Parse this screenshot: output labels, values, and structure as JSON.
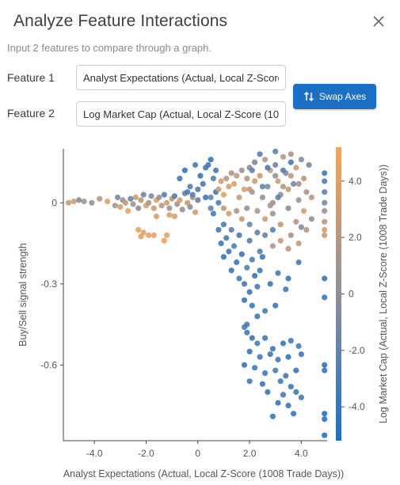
{
  "dialog": {
    "title": "Analyze Feature Interactions",
    "subtitle": "Input 2 features to compare through a graph.",
    "feature1_label": "Feature 1",
    "feature1_value": "Analyst Expectations (Actual, Local Z-Score (1008 Trade Days))",
    "feature2_label": "Feature 2",
    "feature2_value": "Log Market Cap (Actual, Local Z-Score (1008 Trade Days))",
    "swap_label": "Swap Axes",
    "icons": {
      "close": "close-icon",
      "swap": "swap-vertical-icon"
    }
  },
  "chart_data": {
    "type": "scatter",
    "title": "",
    "xlabel": "Analyst Expectations (Actual, Local Z-Score (1008 Trade Days))",
    "ylabel": "Buy/Sell signal strength",
    "colorbar_label": "Log Market Cap (Actual, Local Z-Score (1008 Trade Days))",
    "xlim": [
      -5.2,
      5.0
    ],
    "ylim": [
      -0.88,
      0.2
    ],
    "x_ticks": [
      -4.0,
      -2.0,
      0,
      2.0,
      4.0
    ],
    "x_tick_labels": [
      "-4.0",
      "-2.0",
      "0",
      "2.0",
      "4.0"
    ],
    "y_ticks": [
      0,
      -0.3,
      -0.6
    ],
    "y_tick_labels": [
      "0",
      "-0.3",
      "-0.6"
    ],
    "color_range": [
      -5.2,
      5.2
    ],
    "colorbar_ticks": [
      4.0,
      2.0,
      0,
      -2.0,
      -4.0
    ],
    "colorbar_tick_labels": [
      "4.0",
      "2.0",
      "0",
      "-2.0",
      "-4.0"
    ],
    "colors": {
      "low": "#1f6fc0",
      "mid": "#8f8f9a",
      "high": "#f3a65a"
    },
    "grid": false,
    "point_color_by": "Log Market Cap",
    "points": [
      [
        -5.0,
        0.0,
        2.6
      ],
      [
        -4.8,
        0.005,
        3.2
      ],
      [
        -4.6,
        0.01,
        -0.5
      ],
      [
        -4.4,
        0.005,
        1.2
      ],
      [
        -4.1,
        0.0,
        0.4
      ],
      [
        -3.8,
        0.015,
        2.0
      ],
      [
        -3.5,
        0.005,
        4.2
      ],
      [
        -3.2,
        -0.01,
        1.5
      ],
      [
        -3.1,
        0.02,
        -1.0
      ],
      [
        -3.0,
        -0.015,
        3.5
      ],
      [
        -2.9,
        0.01,
        0.5
      ],
      [
        -2.8,
        0.0,
        2.5
      ],
      [
        -2.7,
        -0.03,
        4.3
      ],
      [
        -2.6,
        0.015,
        -2.0
      ],
      [
        -2.5,
        -0.005,
        1.0
      ],
      [
        -2.4,
        0.02,
        3.0
      ],
      [
        -2.3,
        -0.02,
        0.0
      ],
      [
        -2.2,
        0.01,
        2.2
      ],
      [
        -2.1,
        0.03,
        -1.5
      ],
      [
        -2.0,
        -0.01,
        3.8
      ],
      [
        -1.9,
        0.0,
        1.4
      ],
      [
        -1.8,
        0.025,
        -0.6
      ],
      [
        -1.7,
        -0.02,
        2.8
      ],
      [
        -1.6,
        0.01,
        4.0
      ],
      [
        -1.5,
        0.02,
        0.2
      ],
      [
        -1.4,
        -0.01,
        1.8
      ],
      [
        -1.3,
        0.03,
        -2.5
      ],
      [
        -1.2,
        0.0,
        3.2
      ],
      [
        -1.1,
        -0.02,
        0.8
      ],
      [
        -1.0,
        0.015,
        2.4
      ],
      [
        -0.9,
        0.025,
        -3.0
      ],
      [
        -0.8,
        -0.005,
        1.1
      ],
      [
        -0.7,
        0.01,
        3.6
      ],
      [
        -0.6,
        -0.025,
        0.3
      ],
      [
        -0.5,
        0.035,
        -1.8
      ],
      [
        -0.4,
        0.0,
        2.9
      ],
      [
        -0.3,
        -0.015,
        -0.4
      ],
      [
        -0.2,
        0.02,
        1.6
      ],
      [
        -0.1,
        -0.035,
        3.4
      ],
      [
        0.0,
        0.01,
        -2.2
      ],
      [
        -2.3,
        -0.1,
        4.5
      ],
      [
        -2.1,
        -0.11,
        4.4
      ],
      [
        -1.9,
        -0.12,
        4.6
      ],
      [
        -1.7,
        -0.12,
        4.5
      ],
      [
        -1.3,
        -0.14,
        4.4
      ],
      [
        -1.2,
        -0.12,
        4.6
      ],
      [
        -2.2,
        -0.125,
        4.3
      ],
      [
        -1.1,
        -0.045,
        4.2
      ],
      [
        -0.9,
        -0.05,
        3.9
      ],
      [
        -1.6,
        -0.05,
        4.1
      ],
      [
        -0.7,
        0.09,
        -3.5
      ],
      [
        -0.5,
        0.12,
        -4.0
      ],
      [
        -0.3,
        0.06,
        -2.8
      ],
      [
        -0.1,
        0.14,
        -3.2
      ],
      [
        0.1,
        0.1,
        -4.2
      ],
      [
        0.3,
        0.13,
        -3.0
      ],
      [
        0.4,
        0.14,
        -3.6
      ],
      [
        0.5,
        0.16,
        -4.0
      ],
      [
        0.6,
        0.09,
        -2.5
      ],
      [
        0.2,
        0.07,
        -3.3
      ],
      [
        -0.2,
        0.03,
        -2.4
      ],
      [
        0.0,
        0.05,
        -3.1
      ],
      [
        0.5,
        0.02,
        -1.6
      ],
      [
        0.7,
        0.12,
        -3.4
      ],
      [
        0.3,
        0.02,
        -3.6
      ],
      [
        -0.4,
        0.04,
        -2.9
      ],
      [
        0.5,
        -0.02,
        -2.0
      ],
      [
        0.7,
        0.04,
        -3.5
      ],
      [
        0.8,
        0.0,
        -2.7
      ],
      [
        0.6,
        -0.04,
        -3.3
      ],
      [
        0.8,
        0.05,
        2.8
      ],
      [
        0.9,
        0.08,
        3.4
      ],
      [
        1.0,
        0.03,
        4.0
      ],
      [
        1.1,
        0.09,
        2.2
      ],
      [
        1.2,
        0.06,
        3.6
      ],
      [
        1.3,
        0.11,
        1.5
      ],
      [
        1.4,
        0.07,
        4.2
      ],
      [
        1.5,
        0.1,
        2.6
      ],
      [
        1.6,
        0.02,
        3.0
      ],
      [
        1.7,
        0.12,
        0.8
      ],
      [
        1.8,
        0.05,
        3.8
      ],
      [
        1.9,
        0.09,
        2.0
      ],
      [
        2.0,
        0.13,
        -0.5
      ],
      [
        2.1,
        0.04,
        1.2
      ],
      [
        2.2,
        0.08,
        3.3
      ],
      [
        1.0,
        -0.02,
        2.4
      ],
      [
        1.2,
        -0.04,
        3.7
      ],
      [
        1.5,
        -0.03,
        1.8
      ],
      [
        1.7,
        -0.06,
        2.9
      ],
      [
        1.9,
        -0.02,
        0.6
      ],
      [
        0.8,
        -0.1,
        -3.5
      ],
      [
        0.9,
        -0.15,
        -3.8
      ],
      [
        1.0,
        -0.2,
        -4.0
      ],
      [
        1.1,
        -0.13,
        -3.0
      ],
      [
        1.2,
        -0.18,
        -3.6
      ],
      [
        1.3,
        -0.25,
        -4.2
      ],
      [
        1.4,
        -0.16,
        -2.8
      ],
      [
        1.5,
        -0.22,
        -3.9
      ],
      [
        1.6,
        -0.28,
        -3.3
      ],
      [
        1.7,
        -0.19,
        -4.1
      ],
      [
        1.8,
        -0.3,
        -3.5
      ],
      [
        1.9,
        -0.24,
        -2.6
      ],
      [
        2.0,
        -0.33,
        -3.8
      ],
      [
        2.1,
        -0.21,
        -3.0
      ],
      [
        2.2,
        -0.27,
        -4.0
      ],
      [
        2.3,
        -0.31,
        -3.2
      ],
      [
        2.4,
        -0.18,
        -2.9
      ],
      [
        1.0,
        -0.08,
        -3.1
      ],
      [
        1.3,
        -0.1,
        -2.5
      ],
      [
        1.6,
        -0.12,
        -3.4
      ],
      [
        2.0,
        -0.14,
        -2.7
      ],
      [
        2.5,
        -0.2,
        -3.6
      ],
      [
        1.8,
        -0.36,
        -4.1
      ],
      [
        2.1,
        -0.38,
        -3.7
      ],
      [
        2.0,
        0.05,
        2.5
      ],
      [
        2.2,
        0.15,
        -1.0
      ],
      [
        2.4,
        0.1,
        3.0
      ],
      [
        2.5,
        0.02,
        0.5
      ],
      [
        2.6,
        0.16,
        1.8
      ],
      [
        2.7,
        0.06,
        -0.8
      ],
      [
        2.8,
        0.12,
        2.8
      ],
      [
        2.9,
        0.0,
        1.0
      ],
      [
        3.0,
        0.14,
        -1.5
      ],
      [
        3.1,
        0.08,
        3.2
      ],
      [
        3.2,
        0.03,
        0.0
      ],
      [
        3.3,
        0.17,
        2.2
      ],
      [
        3.4,
        0.11,
        -0.5
      ],
      [
        3.5,
        0.05,
        2.6
      ],
      [
        3.6,
        0.18,
        1.4
      ],
      [
        3.7,
        0.07,
        -1.2
      ],
      [
        3.8,
        0.13,
        3.0
      ],
      [
        3.9,
        0.01,
        0.8
      ],
      [
        4.0,
        0.16,
        -0.3
      ],
      [
        4.1,
        0.09,
        2.4
      ],
      [
        4.2,
        0.04,
        1.6
      ],
      [
        4.3,
        0.14,
        -1.0
      ],
      [
        4.4,
        0.02,
        2.0
      ],
      [
        2.3,
        -0.03,
        1.6
      ],
      [
        2.6,
        -0.06,
        3.1
      ],
      [
        2.9,
        -0.04,
        0.9
      ],
      [
        3.2,
        -0.08,
        2.7
      ],
      [
        3.5,
        -0.02,
        -0.2
      ],
      [
        3.8,
        -0.07,
        1.9
      ],
      [
        4.1,
        -0.03,
        3.4
      ],
      [
        4.4,
        -0.06,
        0.4
      ],
      [
        2.8,
        -0.01,
        1.3
      ],
      [
        3.0,
        0.1,
        0.2
      ],
      [
        3.3,
        0.06,
        1.7
      ],
      [
        3.6,
        0.1,
        2.3
      ],
      [
        3.9,
        0.07,
        1.1
      ],
      [
        2.1,
        0.12,
        -2.0
      ],
      [
        2.4,
        0.18,
        -2.6
      ],
      [
        2.7,
        0.13,
        -3.0
      ],
      [
        3.0,
        0.19,
        -2.2
      ],
      [
        3.3,
        0.12,
        -2.8
      ],
      [
        3.6,
        0.15,
        -3.2
      ],
      [
        2.5,
        0.06,
        -1.8
      ],
      [
        3.1,
        0.02,
        -2.4
      ],
      [
        2.0,
        -0.08,
        -1.5
      ],
      [
        2.3,
        -0.11,
        -2.1
      ],
      [
        2.6,
        -0.12,
        -1.8
      ],
      [
        2.9,
        -0.1,
        -2.5
      ],
      [
        2.4,
        -0.25,
        -3.4
      ],
      [
        2.8,
        -0.3,
        -3.8
      ],
      [
        3.1,
        -0.26,
        -3.1
      ],
      [
        3.5,
        -0.28,
        -3.9
      ],
      [
        3.9,
        -0.22,
        -3.4
      ],
      [
        3.4,
        -0.32,
        -3.6
      ],
      [
        3.0,
        -0.38,
        -4.0
      ],
      [
        1.9,
        -0.45,
        -3.3
      ],
      [
        2.3,
        -0.42,
        -3.7
      ],
      [
        2.6,
        -0.4,
        -3.1
      ],
      [
        3.6,
        -0.12,
        1.2
      ],
      [
        3.9,
        -0.15,
        2.5
      ],
      [
        4.2,
        -0.1,
        1.8
      ],
      [
        3.2,
        -0.14,
        3.0
      ],
      [
        2.9,
        -0.16,
        1.5
      ],
      [
        4.0,
        -0.09,
        -0.5
      ],
      [
        3.5,
        -0.17,
        2.2
      ],
      [
        4.9,
        0.08,
        -2.8
      ],
      [
        4.9,
        0.04,
        -2.2
      ],
      [
        4.9,
        0.0,
        -1.2
      ],
      [
        4.9,
        -0.03,
        0.6
      ],
      [
        4.9,
        -0.07,
        2.2
      ],
      [
        4.9,
        -0.1,
        3.6
      ],
      [
        4.9,
        -0.12,
        2.8
      ],
      [
        4.9,
        0.11,
        -3.4
      ],
      [
        4.9,
        -0.28,
        -4.0
      ],
      [
        4.9,
        -0.35,
        -3.8
      ],
      [
        4.9,
        -0.6,
        -4.4
      ],
      [
        4.9,
        -0.62,
        -4.0
      ],
      [
        4.9,
        -0.78,
        -4.8
      ],
      [
        4.9,
        -0.8,
        -4.6
      ],
      [
        4.9,
        -0.86,
        -4.9
      ],
      [
        1.8,
        -0.46,
        -3.2
      ],
      [
        1.9,
        -0.48,
        -3.6
      ],
      [
        2.1,
        -0.5,
        -3.9
      ],
      [
        2.3,
        -0.52,
        -3.0
      ],
      [
        2.6,
        -0.5,
        -3.5
      ],
      [
        2.9,
        -0.54,
        -3.8
      ],
      [
        3.3,
        -0.52,
        -4.0
      ],
      [
        3.6,
        -0.51,
        -3.4
      ],
      [
        3.9,
        -0.53,
        -3.2
      ],
      [
        2.0,
        -0.55,
        -4.1
      ],
      [
        2.4,
        -0.57,
        -3.3
      ],
      [
        2.8,
        -0.56,
        -3.7
      ],
      [
        3.1,
        -0.58,
        -3.2
      ],
      [
        3.5,
        -0.57,
        -4.0
      ],
      [
        4.0,
        -0.56,
        -3.6
      ],
      [
        1.8,
        -0.6,
        -3.9
      ],
      [
        2.2,
        -0.61,
        -3.4
      ],
      [
        2.6,
        -0.63,
        -3.8
      ],
      [
        3.0,
        -0.62,
        -3.1
      ],
      [
        3.4,
        -0.64,
        -3.6
      ],
      [
        3.8,
        -0.62,
        -4.1
      ],
      [
        2.0,
        -0.66,
        -3.5
      ],
      [
        2.5,
        -0.67,
        -3.9
      ],
      [
        3.2,
        -0.66,
        -3.3
      ],
      [
        3.6,
        -0.68,
        -3.7
      ],
      [
        2.7,
        -0.7,
        -4.0
      ],
      [
        3.3,
        -0.71,
        -3.4
      ],
      [
        3.8,
        -0.7,
        -3.8
      ],
      [
        3.1,
        -0.74,
        -4.2
      ],
      [
        3.5,
        -0.75,
        -3.6
      ],
      [
        2.9,
        -0.79,
        -3.9
      ],
      [
        3.7,
        -0.78,
        -4.0
      ],
      [
        4.0,
        -0.72,
        -3.5
      ]
    ]
  }
}
